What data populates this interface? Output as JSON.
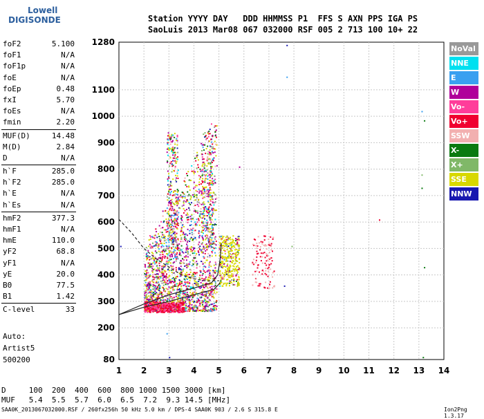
{
  "logo": {
    "line1": "Lowell",
    "line2": "DIGISONDE"
  },
  "header": {
    "row1": "Station YYYY DAY   DDD HHMMSS P1  FFS S AXN PPS IGA PS",
    "row2": "SaoLuis 2013 Mar08 067 032000 RSF 005 2 713 100 10+ 22"
  },
  "params": [
    {
      "k": "foF2",
      "v": "5.100"
    },
    {
      "k": "foF1",
      "v": "N/A"
    },
    {
      "k": "foF1p",
      "v": "N/A"
    },
    {
      "k": "foE",
      "v": "N/A"
    },
    {
      "k": "foEp",
      "v": "0.48"
    },
    {
      "k": "fxI",
      "v": "5.70"
    },
    {
      "k": "foEs",
      "v": "N/A"
    },
    {
      "k": "fmin",
      "v": "2.20"
    },
    {
      "k": "MUF(D)",
      "v": "14.48"
    },
    {
      "k": "M(D)",
      "v": "2.84"
    },
    {
      "k": "D",
      "v": "N/A"
    },
    {
      "k": "h`F",
      "v": "285.0"
    },
    {
      "k": "h`F2",
      "v": "285.0"
    },
    {
      "k": "h`E",
      "v": "N/A"
    },
    {
      "k": "h`Es",
      "v": "N/A"
    },
    {
      "k": "hmF2",
      "v": "377.3"
    },
    {
      "k": "hmF1",
      "v": "N/A"
    },
    {
      "k": "hmE",
      "v": "110.0"
    },
    {
      "k": "yF2",
      "v": "68.8"
    },
    {
      "k": "yF1",
      "v": "N/A"
    },
    {
      "k": "yE",
      "v": "20.0"
    },
    {
      "k": "B0",
      "v": "77.5"
    },
    {
      "k": "B1",
      "v": "1.42"
    },
    {
      "k": "C-level",
      "v": "33"
    }
  ],
  "auto": {
    "line1": "Auto:",
    "line2": "Artist5",
    "line3": "500200"
  },
  "legend": [
    {
      "label": "NoVal",
      "color": "#999999"
    },
    {
      "label": "NNE",
      "color": "#00e0f0"
    },
    {
      "label": "E",
      "color": "#3aa0f0"
    },
    {
      "label": "W",
      "color": "#b0009a"
    },
    {
      "label": "Vo-",
      "color": "#ff3d9a"
    },
    {
      "label": "Vo+",
      "color": "#f00030"
    },
    {
      "label": "SSW",
      "color": "#f2b0b0"
    },
    {
      "label": "X-",
      "color": "#0a7a10"
    },
    {
      "label": "X+",
      "color": "#80b868"
    },
    {
      "label": "SSE",
      "color": "#d8d800"
    },
    {
      "label": "NNW",
      "color": "#1818b0"
    }
  ],
  "bottom": {
    "d_row": "D     100  200  400  600  800 1000 1500 3000 [km]",
    "muf_row": "MUF   5.4  5.5  5.7  6.0  6.5  7.2  9.3 14.5 [MHz]"
  },
  "footer": {
    "left": "SAA0K_2013067032000.RSF / 260fx256h 50 kHz 5.0 km / DPS-4 SAA0K 903 / 2.6 S 315.8 E",
    "right": "Ion2Png 1.3.17"
  },
  "chart_data": {
    "type": "scatter",
    "x_ticks": [
      1,
      2,
      3,
      4,
      5,
      6,
      7,
      8,
      9,
      10,
      11,
      12,
      13,
      14
    ],
    "y_ticks": [
      80,
      200,
      300,
      400,
      500,
      600,
      700,
      800,
      900,
      1000,
      1100,
      1280
    ],
    "xlim": [
      1,
      14
    ],
    "ylim": [
      80,
      1280
    ],
    "grid": true
  }
}
